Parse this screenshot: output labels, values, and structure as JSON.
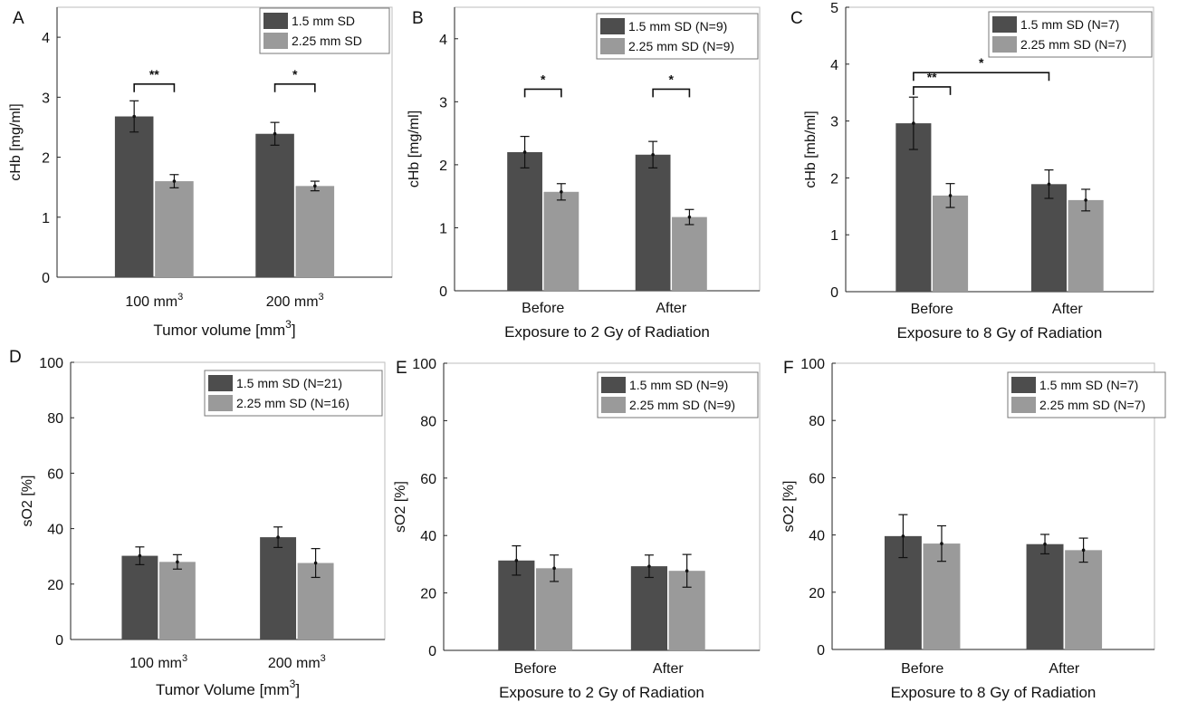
{
  "colors": {
    "dark": "#4d4d4d",
    "light": "#9a9a9a",
    "axis": "#222222"
  },
  "chart_data": [
    {
      "type": "bar",
      "panel_letter": "A",
      "panel": "A",
      "categories": [
        "100 mm",
        "200 mm"
      ],
      "category_sup": [
        "3",
        "3"
      ],
      "ylabel": "cHb [mg/ml]",
      "xlabel": "Tumor volume [mm",
      "xlabel_sup": "3",
      "xlabel_end": "]",
      "ylim": [
        0,
        4.5
      ],
      "yticks": [
        0,
        1,
        2,
        3,
        4
      ],
      "grid": false,
      "legend_position": "top-right",
      "series": [
        {
          "name": "1.5 mm SD",
          "values": [
            2.68,
            2.39
          ],
          "errors": [
            0.26,
            0.19
          ]
        },
        {
          "name": "2.25 mm SD",
          "values": [
            1.6,
            1.52
          ],
          "errors": [
            0.11,
            0.08
          ]
        }
      ],
      "significance": [
        {
          "group": 0,
          "y": 3.22,
          "label": "**"
        },
        {
          "group": 1,
          "y": 3.22,
          "label": "*"
        }
      ]
    },
    {
      "type": "bar",
      "panel_letter": "B",
      "panel": "B",
      "categories": [
        "Before",
        "After"
      ],
      "category_sup": [
        "",
        ""
      ],
      "ylabel": "cHb [mg/ml]",
      "xlabel": "Exposure to 2 Gy of Radiation",
      "xlabel_sup": "",
      "xlabel_end": "",
      "ylim": [
        0,
        4.5
      ],
      "yticks": [
        0,
        1,
        2,
        3,
        4
      ],
      "grid": false,
      "legend_position": "top-right",
      "series": [
        {
          "name": "1.5 mm SD (N=9)",
          "values": [
            2.2,
            2.16
          ],
          "errors": [
            0.25,
            0.21
          ]
        },
        {
          "name": "2.25 mm SD (N=9)",
          "values": [
            1.57,
            1.17
          ],
          "errors": [
            0.13,
            0.12
          ]
        }
      ],
      "significance": [
        {
          "group": 0,
          "y": 3.2,
          "label": "*"
        },
        {
          "group": 1,
          "y": 3.2,
          "label": "*"
        }
      ]
    },
    {
      "type": "bar",
      "panel_letter": "C",
      "panel": "C",
      "categories": [
        "Before",
        "After"
      ],
      "category_sup": [
        "",
        ""
      ],
      "ylabel": "cHb [mb/ml]",
      "xlabel": "Exposure to 8 Gy of Radiation",
      "xlabel_sup": "",
      "xlabel_end": "",
      "ylim": [
        0,
        5
      ],
      "yticks": [
        0,
        1,
        2,
        3,
        4,
        5
      ],
      "grid": false,
      "legend_position": "top-right",
      "series": [
        {
          "name": "1.5 mm SD (N=7)",
          "values": [
            2.96,
            1.89
          ],
          "errors": [
            0.46,
            0.25
          ]
        },
        {
          "name": "2.25 mm SD (N=7)",
          "values": [
            1.69,
            1.61
          ],
          "errors": [
            0.21,
            0.19
          ]
        }
      ],
      "significance": [
        {
          "from": 0,
          "to": 1,
          "y": 3.6,
          "label": "**"
        },
        {
          "from": 0,
          "to": 2,
          "y": 3.85,
          "label": "*"
        }
      ]
    },
    {
      "type": "bar",
      "panel_letter": "D",
      "panel": "D",
      "categories": [
        "100 mm",
        "200 mm"
      ],
      "category_sup": [
        "3",
        "3"
      ],
      "ylabel": "sO2 [%]",
      "xlabel": "Tumor Volume [mm",
      "xlabel_sup": "3",
      "xlabel_end": "]",
      "ylim": [
        0,
        100
      ],
      "yticks": [
        0,
        20,
        40,
        60,
        80,
        100
      ],
      "grid": false,
      "legend_position": "top-right",
      "series": [
        {
          "name": "1.5 mm SD (N=21)",
          "values": [
            30.2,
            36.9
          ],
          "errors": [
            3.2,
            3.7
          ]
        },
        {
          "name": "2.25 mm SD (N=16)",
          "values": [
            28.0,
            27.6
          ],
          "errors": [
            2.6,
            5.2
          ]
        }
      ],
      "significance": []
    },
    {
      "type": "bar",
      "panel_letter": "E",
      "panel": "E",
      "categories": [
        "Before",
        "After"
      ],
      "category_sup": [
        "",
        ""
      ],
      "ylabel": "sO2 [%]",
      "xlabel": "Exposure to 2 Gy of Radiation",
      "xlabel_sup": "",
      "xlabel_end": "",
      "ylim": [
        0,
        100
      ],
      "yticks": [
        0,
        20,
        40,
        60,
        80,
        100
      ],
      "grid": false,
      "legend_position": "top-right",
      "series": [
        {
          "name": "1.5 mm SD (N=9)",
          "values": [
            31.3,
            29.3
          ],
          "errors": [
            5.1,
            3.9
          ]
        },
        {
          "name": "2.25 mm SD (N=9)",
          "values": [
            28.6,
            27.7
          ],
          "errors": [
            4.6,
            5.7
          ]
        }
      ],
      "significance": []
    },
    {
      "type": "bar",
      "panel_letter": "F",
      "panel": "F",
      "categories": [
        "Before",
        "After"
      ],
      "category_sup": [
        "",
        ""
      ],
      "ylabel": "sO2 [%]",
      "xlabel": "Exposure to 8 Gy of Radiation",
      "xlabel_sup": "",
      "xlabel_end": "",
      "ylim": [
        0,
        100
      ],
      "yticks": [
        0,
        20,
        40,
        60,
        80,
        100
      ],
      "grid": false,
      "legend_position": "top-right",
      "series": [
        {
          "name": "1.5 mm SD (N=7)",
          "values": [
            39.6,
            36.8
          ],
          "errors": [
            7.5,
            3.4
          ]
        },
        {
          "name": "2.25 mm SD (N=7)",
          "values": [
            37.0,
            34.7
          ],
          "errors": [
            6.2,
            4.2
          ]
        }
      ],
      "significance": []
    }
  ]
}
